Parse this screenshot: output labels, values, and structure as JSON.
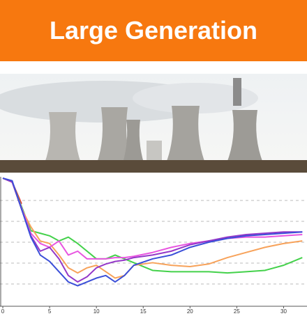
{
  "header": {
    "title": "Large Generation"
  },
  "chart_data": {
    "type": "line",
    "x": [
      0,
      1,
      2,
      3,
      4,
      5,
      6,
      7,
      8,
      9,
      10,
      11,
      12,
      13,
      14,
      16,
      18,
      20,
      22,
      24,
      26,
      28,
      30,
      32
    ],
    "xlim": [
      -0.3,
      32.5
    ],
    "xticks": [
      0,
      5,
      10,
      15,
      20,
      25,
      30
    ],
    "ylim": [
      0,
      100
    ],
    "series": [
      {
        "color": "#e8262b",
        "values": [
          100,
          97,
          80,
          null,
          null,
          null,
          null,
          null,
          null,
          null,
          null,
          null,
          null,
          null,
          null,
          null,
          null,
          null,
          null,
          null,
          null,
          null,
          null,
          null
        ]
      },
      {
        "color": "#43d14a",
        "values": [
          100,
          97,
          78,
          59,
          57,
          55,
          51,
          54,
          49,
          43,
          37,
          37,
          40,
          37,
          34,
          28,
          27,
          27,
          27,
          26,
          27,
          28,
          32,
          38
        ]
      },
      {
        "color": "#f7a25a",
        "values": [
          100,
          97,
          76,
          62,
          51,
          49,
          40,
          30,
          26,
          30,
          32,
          27,
          22,
          24,
          32,
          34,
          32,
          31,
          33,
          38,
          42,
          46,
          49,
          51
        ]
      },
      {
        "color": "#e855e0",
        "values": [
          100,
          97,
          77,
          57,
          49,
          46,
          51,
          40,
          43,
          37,
          37,
          37,
          38,
          38,
          39,
          42,
          46,
          49,
          51,
          53,
          54,
          54,
          55,
          56
        ]
      },
      {
        "color": "#9438c8",
        "values": [
          100,
          97,
          76,
          55,
          43,
          46,
          37,
          24,
          19,
          23,
          30,
          33,
          35,
          36,
          38,
          40,
          43,
          48,
          51,
          54,
          56,
          57,
          58,
          58
        ]
      },
      {
        "color": "#3b4fd8",
        "values": [
          100,
          98,
          76,
          54,
          40,
          35,
          27,
          19,
          16,
          19,
          22,
          24,
          19,
          24,
          32,
          37,
          40,
          46,
          50,
          53,
          55,
          56,
          57,
          58
        ]
      }
    ]
  }
}
